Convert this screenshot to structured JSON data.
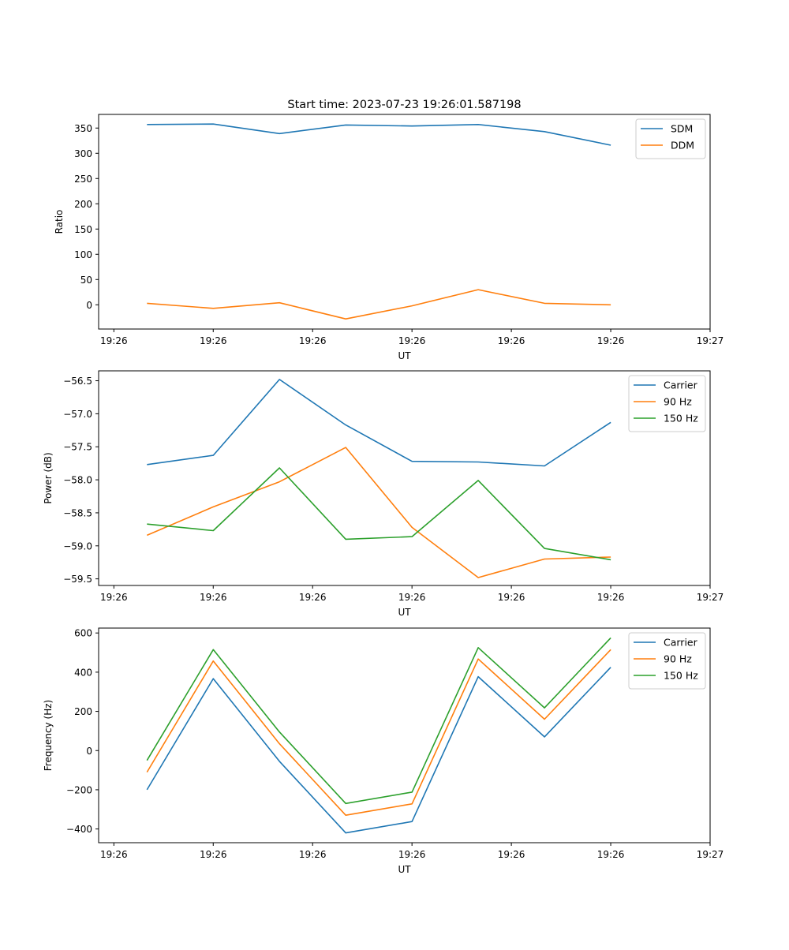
{
  "chart_data": [
    {
      "type": "line",
      "title": "Start time: 2023-07-23 19:26:01.587198",
      "xlabel": "UT",
      "ylabel": "Ratio",
      "x": [
        0,
        1,
        2,
        3,
        4,
        5,
        6,
        7
      ],
      "xlim": [
        -0.73,
        8.5
      ],
      "xticks": [
        -0.5,
        1,
        2.5,
        4,
        5.5,
        7,
        8.5
      ],
      "xtick_labels": [
        "19:26",
        "19:26",
        "19:26",
        "19:26",
        "19:26",
        "19:26",
        "19:27"
      ],
      "ylim": [
        -48,
        377
      ],
      "yticks": [
        0,
        50,
        100,
        150,
        200,
        250,
        300,
        350
      ],
      "ytick_labels": [
        "0",
        "50",
        "100",
        "150",
        "200",
        "250",
        "300",
        "350"
      ],
      "legend": "top-right",
      "series": [
        {
          "name": "SDM",
          "color": "#1f77b4",
          "values": [
            357,
            358,
            339,
            356,
            354,
            357,
            343,
            316
          ]
        },
        {
          "name": "DDM",
          "color": "#ff7f0e",
          "values": [
            3,
            -7,
            4,
            -28,
            -2,
            30,
            3,
            0
          ]
        }
      ]
    },
    {
      "type": "line",
      "title": "",
      "xlabel": "UT",
      "ylabel": "Power (dB)",
      "x": [
        0,
        1,
        2,
        3,
        4,
        5,
        6,
        7
      ],
      "xlim": [
        -0.73,
        8.5
      ],
      "xticks": [
        -0.5,
        1,
        2.5,
        4,
        5.5,
        7,
        8.5
      ],
      "xtick_labels": [
        "19:26",
        "19:26",
        "19:26",
        "19:26",
        "19:26",
        "19:26",
        "19:27"
      ],
      "ylim": [
        -59.6,
        -56.35
      ],
      "yticks": [
        -59.5,
        -59.0,
        -58.5,
        -58.0,
        -57.5,
        -57.0,
        -56.5
      ],
      "ytick_labels": [
        "−59.5",
        "−59.0",
        "−58.5",
        "−58.0",
        "−57.5",
        "−57.0",
        "−56.5"
      ],
      "legend": "top-right",
      "series": [
        {
          "name": "Carrier",
          "color": "#1f77b4",
          "values": [
            -57.77,
            -57.63,
            -56.48,
            -57.17,
            -57.72,
            -57.73,
            -57.79,
            -57.13
          ]
        },
        {
          "name": "90 Hz",
          "color": "#ff7f0e",
          "values": [
            -58.84,
            -58.41,
            -58.03,
            -57.51,
            -58.72,
            -59.48,
            -59.2,
            -59.17
          ]
        },
        {
          "name": "150 Hz",
          "color": "#2ca02c",
          "values": [
            -58.67,
            -58.77,
            -57.82,
            -58.9,
            -58.86,
            -58.01,
            -59.04,
            -59.21
          ]
        }
      ]
    },
    {
      "type": "line",
      "title": "",
      "xlabel": "UT",
      "ylabel": "Frequency (Hz)",
      "x": [
        0,
        1,
        2,
        3,
        4,
        5,
        6,
        7
      ],
      "xlim": [
        -0.73,
        8.5
      ],
      "xticks": [
        -0.5,
        1,
        2.5,
        4,
        5.5,
        7,
        8.5
      ],
      "xtick_labels": [
        "19:26",
        "19:26",
        "19:26",
        "19:26",
        "19:26",
        "19:26",
        "19:27"
      ],
      "ylim": [
        -470,
        625
      ],
      "yticks": [
        -400,
        -200,
        0,
        200,
        400,
        600
      ],
      "ytick_labels": [
        "−400",
        "−200",
        "0",
        "200",
        "400",
        "600"
      ],
      "legend": "top-right",
      "series": [
        {
          "name": "Carrier",
          "color": "#1f77b4",
          "values": [
            -200,
            367,
            -55,
            -420,
            -362,
            377,
            70,
            425
          ]
        },
        {
          "name": "90 Hz",
          "color": "#ff7f0e",
          "values": [
            -110,
            457,
            35,
            -330,
            -272,
            467,
            160,
            515
          ]
        },
        {
          "name": "150 Hz",
          "color": "#2ca02c",
          "values": [
            -50,
            515,
            95,
            -270,
            -212,
            525,
            218,
            575
          ]
        }
      ]
    }
  ]
}
